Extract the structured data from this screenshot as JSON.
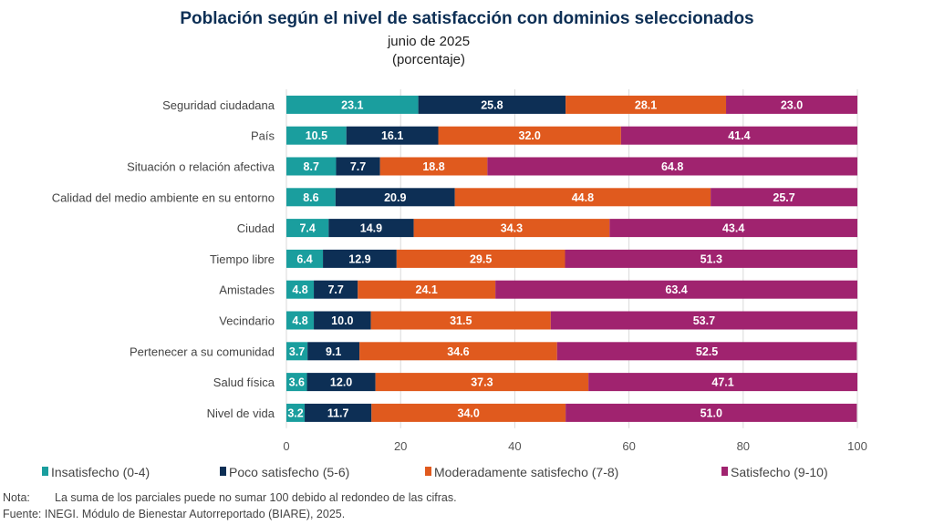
{
  "chart_data": {
    "type": "bar",
    "orientation": "horizontal",
    "stacked": true,
    "title": "Población según el nivel de satisfacción con dominios seleccionados",
    "subtitle": "junio de 2025",
    "unit_label": "(porcentaje)",
    "xlim": [
      0,
      100
    ],
    "xticks": [
      0,
      20,
      40,
      60,
      80,
      100
    ],
    "grid": true,
    "legend_position": "bottom",
    "categories": [
      "Seguridad ciudadana",
      "País",
      "Situación o relación afectiva",
      "Calidad del medio ambiente en su entorno",
      "Ciudad",
      "Tiempo libre",
      "Amistades",
      "Vecindario",
      "Pertenecer a su comunidad",
      "Salud física",
      "Nivel de vida"
    ],
    "series": [
      {
        "name": "Insatisfecho (0-4)",
        "color": "#1a9e9e",
        "values": [
          23.1,
          10.5,
          8.7,
          8.6,
          7.4,
          6.4,
          4.8,
          4.8,
          3.7,
          3.6,
          3.2
        ]
      },
      {
        "name": "Poco satisfecho (5-6)",
        "color": "#0d2f55",
        "values": [
          25.8,
          16.1,
          7.7,
          20.9,
          14.9,
          12.9,
          7.7,
          10.0,
          9.1,
          12.0,
          11.7
        ]
      },
      {
        "name": "Moderadamente satisfecho (7-8)",
        "color": "#e05a1e",
        "values": [
          28.1,
          32.0,
          18.8,
          44.8,
          34.3,
          29.5,
          24.1,
          31.5,
          34.6,
          37.3,
          34.0
        ]
      },
      {
        "name": "Satisfecho (9-10)",
        "color": "#a0236f",
        "values": [
          23.0,
          41.4,
          64.8,
          25.7,
          43.4,
          51.3,
          63.4,
          53.7,
          52.5,
          47.1,
          51.0
        ]
      }
    ]
  },
  "notes": {
    "nota_label": "Nota:",
    "nota_text": "La suma de los parciales puede no sumar 100 debido al redondeo de las cifras.",
    "fuente": "Fuente: INEGI. Módulo de Bienestar Autorreportado (BIARE), 2025."
  }
}
